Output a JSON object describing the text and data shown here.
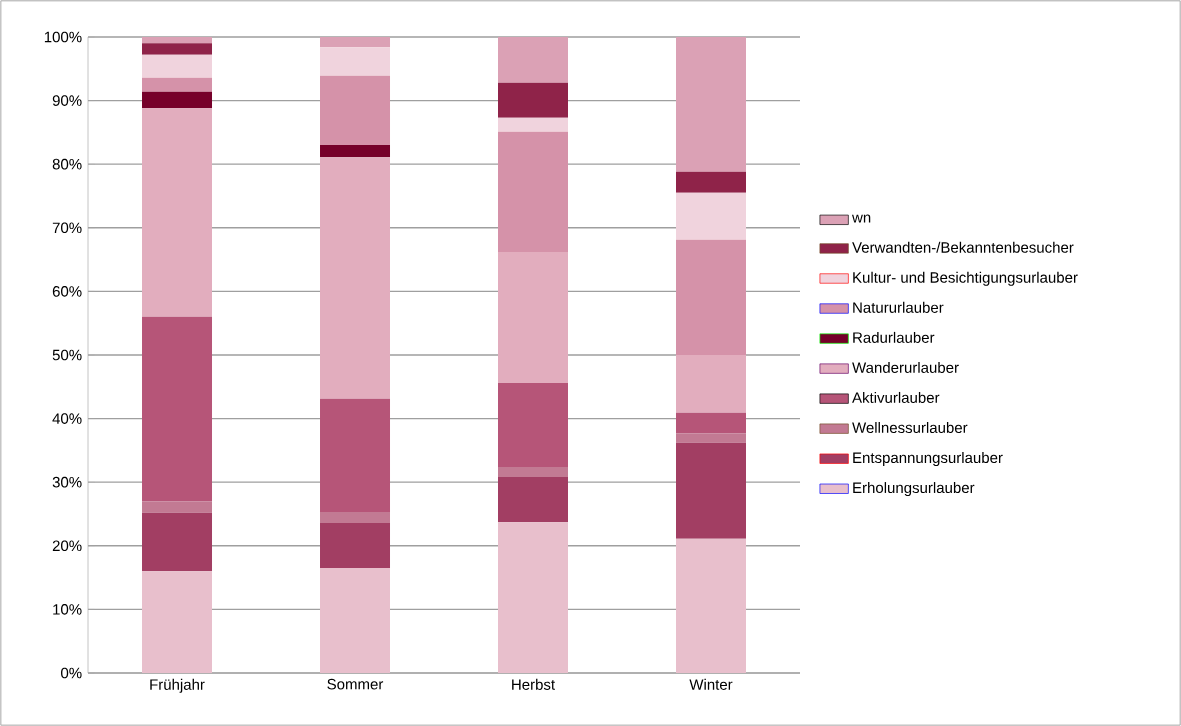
{
  "chart_data": {
    "type": "bar",
    "stacked": true,
    "categories": [
      "Frühjahr",
      "Sommer",
      "Herbst",
      "Winter"
    ],
    "series": [
      {
        "name": "Erholungsurlauber",
        "color": "#e8bfcc",
        "values": [
          16.0,
          16.5,
          23.7,
          21.1
        ]
      },
      {
        "name": "Entspannungsurlauber",
        "color": "#a23e63",
        "values": [
          9.2,
          7.1,
          7.1,
          15.1
        ]
      },
      {
        "name": "Wellnessurlauber",
        "color": "#c27a93",
        "values": [
          1.8,
          1.7,
          1.6,
          1.5
        ]
      },
      {
        "name": "Aktivurlauber",
        "color": "#b65578",
        "values": [
          29.0,
          17.8,
          13.2,
          3.2
        ]
      },
      {
        "name": "Wanderurlauber",
        "color": "#e2adbe",
        "values": [
          32.8,
          38.0,
          20.6,
          9.1
        ]
      },
      {
        "name": "Radurlauber",
        "color": "#76002a",
        "values": [
          2.6,
          1.9,
          0,
          0
        ]
      },
      {
        "name": "Natururlauber",
        "color": "#d592a9",
        "values": [
          2.2,
          10.9,
          18.9,
          18.1
        ]
      },
      {
        "name": "Kultur- und Besichtigungsurlauber",
        "color": "#f0d3dd",
        "values": [
          3.6,
          4.5,
          2.2,
          7.4
        ]
      },
      {
        "name": "Verwandten-/Bekanntenbesucher",
        "color": "#8f2349",
        "values": [
          1.8,
          0,
          5.5,
          3.3
        ]
      },
      {
        "name": "wn",
        "color": "#dba1b5",
        "values": [
          1.0,
          1.6,
          7.2,
          21.2
        ]
      }
    ],
    "ylim": [
      0,
      100
    ],
    "yticks": [
      {
        "value": 0,
        "label": "0%"
      },
      {
        "value": 10,
        "label": "10%"
      },
      {
        "value": 20,
        "label": "20%"
      },
      {
        "value": 30,
        "label": "30%"
      },
      {
        "value": 40,
        "label": "40%"
      },
      {
        "value": 50,
        "label": "50%"
      },
      {
        "value": 60,
        "label": "60%"
      },
      {
        "value": 70,
        "label": "70%"
      },
      {
        "value": 80,
        "label": "80%"
      },
      {
        "value": 90,
        "label": "90%"
      },
      {
        "value": 100,
        "label": "100%"
      }
    ],
    "grid": "y",
    "legend": "right"
  }
}
